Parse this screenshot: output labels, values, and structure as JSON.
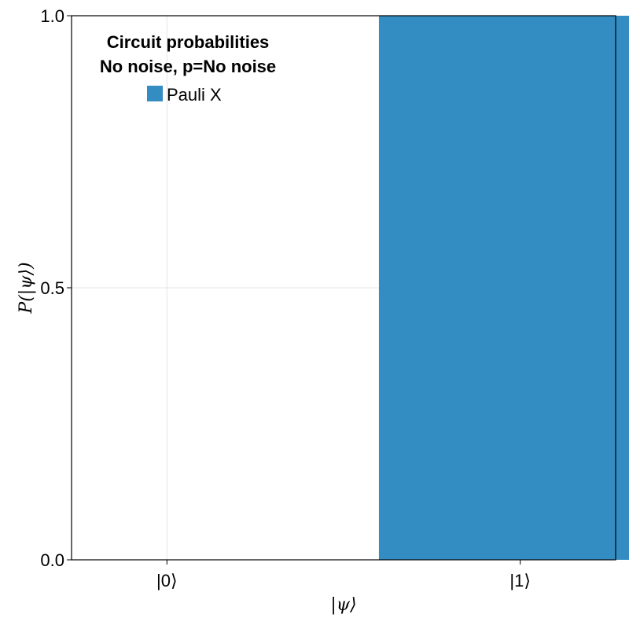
{
  "chart_data": {
    "type": "bar",
    "categories": [
      "|0⟩",
      "|1⟩"
    ],
    "series": [
      {
        "name": "Pauli X",
        "values": [
          0.0,
          1.0
        ],
        "color": "#348dc2"
      }
    ],
    "xlabel": "|ψ⟩",
    "ylabel": "P(|ψ⟩)",
    "ylim": [
      0,
      1
    ],
    "yticks": [
      0.0,
      0.5,
      1.0
    ],
    "ytick_labels": [
      "0.0",
      "0.5",
      "1.0"
    ],
    "grid": true,
    "legend": {
      "title_line1": "Circuit probabilities",
      "title_line2": "No noise, p=No noise",
      "placement": "top-left"
    }
  }
}
